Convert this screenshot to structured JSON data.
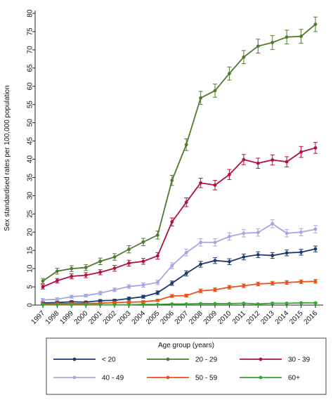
{
  "chart_data": {
    "type": "line",
    "ylabel": "Sex standardised rates per 100,000 population",
    "xlabel": "",
    "ylim": [
      0,
      80
    ],
    "yticks": [
      0,
      5,
      10,
      15,
      20,
      25,
      30,
      35,
      40,
      45,
      50,
      55,
      60,
      65,
      70,
      75,
      80
    ],
    "x": [
      "1997",
      "1998",
      "1999",
      "2000",
      "2001",
      "2002",
      "2003",
      "2004",
      "2005",
      "2006",
      "2007",
      "2008",
      "2009",
      "2010",
      "2011",
      "2012",
      "2013",
      "2014",
      "2015",
      "2016"
    ],
    "grid": false,
    "error_bars": true,
    "legend": {
      "title": "Age group (years)",
      "position": "bottom"
    },
    "series": [
      {
        "name": "< 20",
        "color": "#1a3a6b",
        "values": [
          0.6,
          0.7,
          0.9,
          0.8,
          1.2,
          1.3,
          1.8,
          2.3,
          3.4,
          6.0,
          8.7,
          11.2,
          12.2,
          11.9,
          13.2,
          13.8,
          13.6,
          14.3,
          14.5,
          15.4
        ],
        "err": [
          0.3,
          0.3,
          0.3,
          0.3,
          0.3,
          0.3,
          0.4,
          0.4,
          0.5,
          0.6,
          0.7,
          0.8,
          0.8,
          0.8,
          0.8,
          0.8,
          0.8,
          0.8,
          0.8,
          0.8
        ]
      },
      {
        "name": "20 - 29",
        "color": "#4e7a2e",
        "values": [
          6.6,
          9.3,
          10.0,
          10.3,
          12.0,
          13.2,
          15.3,
          17.3,
          19.2,
          34.2,
          44.0,
          56.8,
          58.8,
          63.5,
          68.0,
          71.0,
          72.0,
          73.5,
          73.7,
          77.0
        ],
        "err": [
          0.7,
          0.8,
          0.8,
          0.8,
          0.9,
          0.9,
          1.0,
          1.0,
          1.1,
          1.4,
          1.6,
          1.8,
          1.8,
          1.8,
          1.8,
          1.9,
          1.9,
          1.9,
          1.9,
          2.0
        ]
      },
      {
        "name": "30 - 39",
        "color": "#b0133a",
        "values": [
          5.0,
          6.7,
          7.9,
          8.2,
          9.0,
          10.1,
          11.5,
          12.0,
          13.5,
          22.8,
          28.2,
          33.5,
          32.9,
          35.8,
          39.9,
          38.9,
          39.8,
          39.3,
          42.0,
          43.1
        ],
        "err": [
          0.6,
          0.6,
          0.7,
          0.7,
          0.7,
          0.8,
          0.8,
          0.8,
          0.9,
          1.1,
          1.2,
          1.3,
          1.3,
          1.4,
          1.4,
          1.4,
          1.4,
          1.4,
          1.5,
          1.5
        ]
      },
      {
        "name": "40 - 49",
        "color": "#a7a5e0",
        "values": [
          1.4,
          1.6,
          2.3,
          2.6,
          3.3,
          4.2,
          5.1,
          5.5,
          6.2,
          10.8,
          14.4,
          17.2,
          17.2,
          18.8,
          19.7,
          19.9,
          22.3,
          19.7,
          20.0,
          20.8
        ],
        "err": [
          0.4,
          0.4,
          0.4,
          0.4,
          0.5,
          0.5,
          0.5,
          0.6,
          0.6,
          0.8,
          0.9,
          1.0,
          1.0,
          1.0,
          1.0,
          1.0,
          1.1,
          1.0,
          1.0,
          1.0
        ]
      },
      {
        "name": "50 - 59",
        "color": "#e8521a",
        "values": [
          0.3,
          0.4,
          0.4,
          0.4,
          0.5,
          0.7,
          0.8,
          0.9,
          1.3,
          2.5,
          2.6,
          3.9,
          4.2,
          4.9,
          5.3,
          5.8,
          6.0,
          6.2,
          6.4,
          6.5
        ],
        "err": [
          0.2,
          0.2,
          0.2,
          0.2,
          0.2,
          0.3,
          0.3,
          0.3,
          0.3,
          0.4,
          0.4,
          0.5,
          0.5,
          0.5,
          0.5,
          0.5,
          0.5,
          0.5,
          0.5,
          0.5
        ]
      },
      {
        "name": "60+",
        "color": "#2faa2f",
        "values": [
          0.1,
          0.1,
          0.1,
          0.1,
          0.1,
          0.1,
          0.1,
          0.2,
          0.2,
          0.3,
          0.3,
          0.4,
          0.4,
          0.4,
          0.5,
          0.3,
          0.5,
          0.5,
          0.6,
          0.6
        ],
        "err": [
          0.1,
          0.1,
          0.1,
          0.1,
          0.1,
          0.1,
          0.1,
          0.1,
          0.1,
          0.1,
          0.1,
          0.1,
          0.1,
          0.1,
          0.1,
          0.1,
          0.1,
          0.1,
          0.1,
          0.1
        ]
      }
    ]
  }
}
